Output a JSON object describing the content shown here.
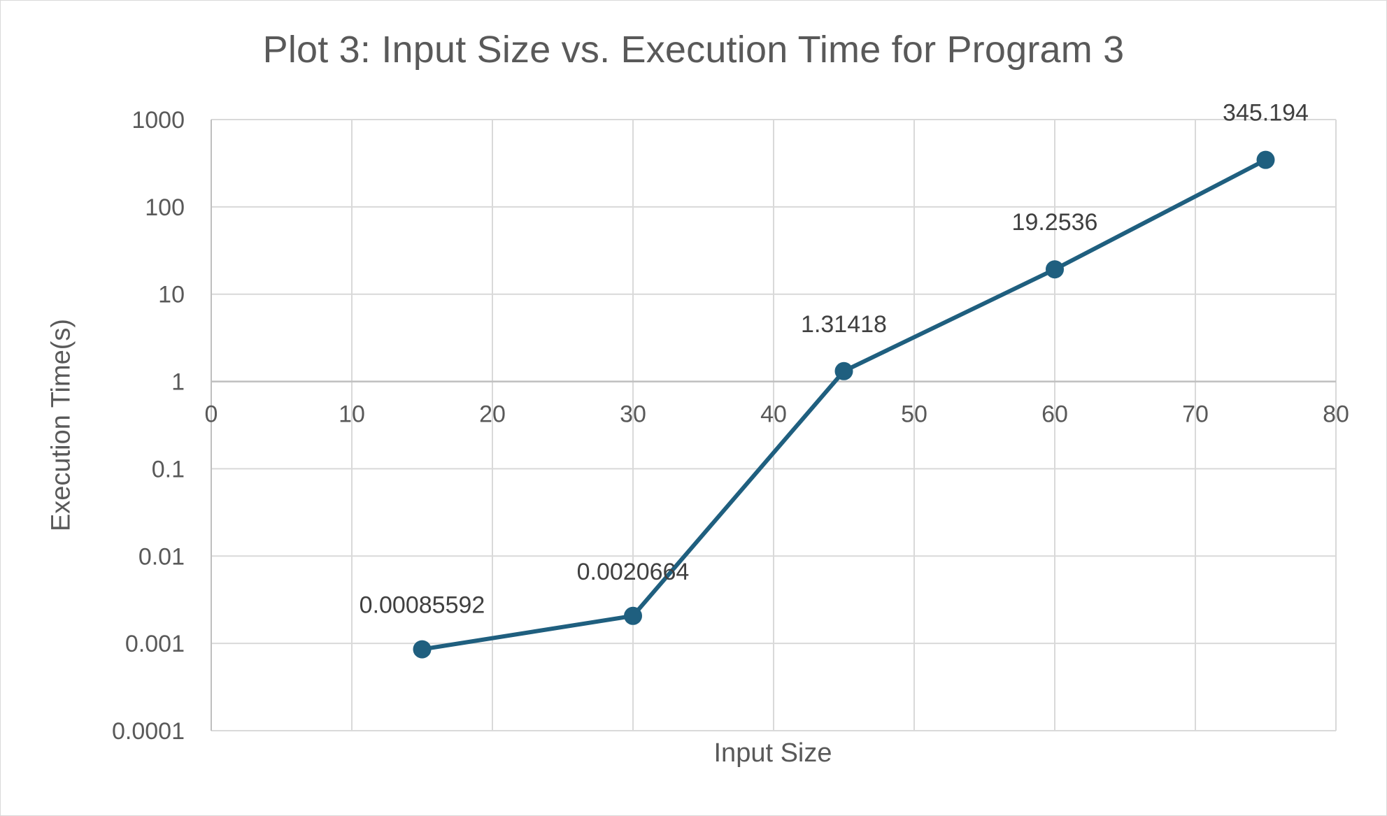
{
  "chart_data": {
    "type": "line",
    "title": "Plot 3: Input Size vs. Execution Time for Program 3",
    "xlabel": "Input Size",
    "ylabel": "Execution Time(s)",
    "x_scale": "linear",
    "y_scale": "log",
    "xlim": [
      0,
      80
    ],
    "ylim": [
      0.0001,
      1000
    ],
    "x_ticks": [
      0,
      10,
      20,
      30,
      40,
      50,
      60,
      70,
      80
    ],
    "x_tick_labels": [
      "0",
      "10",
      "20",
      "30",
      "40",
      "50",
      "60",
      "70",
      "80"
    ],
    "y_ticks": [
      0.0001,
      0.001,
      0.01,
      0.1,
      1,
      10,
      100,
      1000
    ],
    "y_tick_labels": [
      "0.0001",
      "0.001",
      "0.01",
      "0.1",
      "1",
      "10",
      "100",
      "1000"
    ],
    "x_axis_crosses_y_at": 1,
    "grid": true,
    "legend": "none",
    "series": [
      {
        "color": "#1f5f7f",
        "marker": "circle",
        "x": [
          15,
          30,
          45,
          60,
          75
        ],
        "y": [
          0.00085592,
          0.0020664,
          1.31418,
          19.2536,
          345.194
        ],
        "data_labels": [
          "0.00085592",
          "0.0020664",
          "1.31418",
          "19.2536",
          "345.194"
        ]
      }
    ]
  },
  "colors": {
    "gridline": "#d9d9d9",
    "axis": "#bfbfbf",
    "text": "#595959",
    "series": "#1f5f7f"
  }
}
